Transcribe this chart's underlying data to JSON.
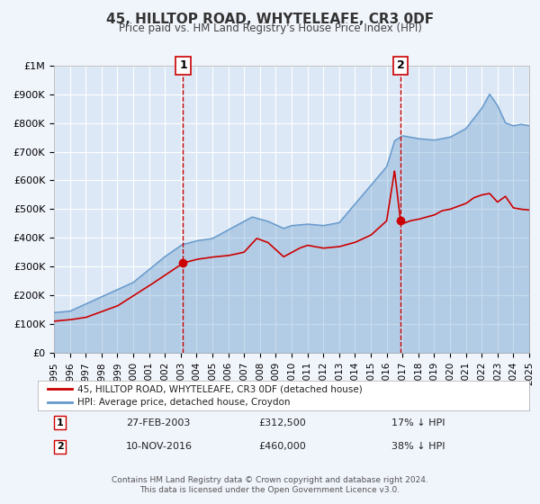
{
  "title": "45, HILLTOP ROAD, WHYTELEAFE, CR3 0DF",
  "subtitle": "Price paid vs. HM Land Registry's House Price Index (HPI)",
  "xlabel": "",
  "ylabel": "",
  "bg_color": "#f0f4fb",
  "plot_bg_color": "#dce8f5",
  "grid_color": "#ffffff",
  "xmin": 1995,
  "xmax": 2025,
  "ymin": 0,
  "ymax": 1000000,
  "yticks": [
    0,
    100000,
    200000,
    300000,
    400000,
    500000,
    600000,
    700000,
    800000,
    900000,
    1000000
  ],
  "ylabels": [
    "£0",
    "£100K",
    "£200K",
    "£300K",
    "£400K",
    "£500K",
    "£600K",
    "£700K",
    "£800K",
    "£900K",
    "£1M"
  ],
  "red_line_color": "#cc0000",
  "blue_line_color": "#6699cc",
  "sale1_x": 2003.15,
  "sale1_y": 312500,
  "sale1_label": "1",
  "sale2_x": 2016.87,
  "sale2_y": 460000,
  "sale2_label": "2",
  "legend_label_red": "45, HILLTOP ROAD, WHYTELEAFE, CR3 0DF (detached house)",
  "legend_label_blue": "HPI: Average price, detached house, Croydon",
  "table_row1": [
    "1",
    "27-FEB-2003",
    "£312,500",
    "17% ↓ HPI"
  ],
  "table_row2": [
    "2",
    "10-NOV-2016",
    "£460,000",
    "38% ↓ HPI"
  ],
  "footer1": "Contains HM Land Registry data © Crown copyright and database right 2024.",
  "footer2": "This data is licensed under the Open Government Licence v3.0."
}
